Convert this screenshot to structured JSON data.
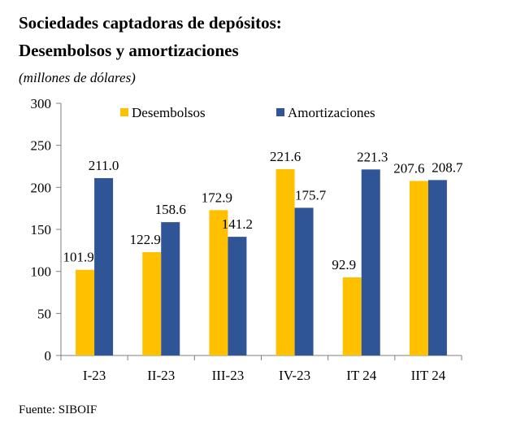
{
  "title_line1": "Sociedades captadoras de depósitos:",
  "title_line2": "Desembolsos y amortizaciones",
  "subtitle": "(millones de dólares)",
  "source": "Fuente:  SIBOIF",
  "colors": {
    "desembolsos": "#FFC000",
    "amortizaciones": "#2F5597"
  },
  "chart_data": {
    "type": "bar",
    "categories": [
      "I-23",
      "II-23",
      "III-23",
      "IV-23",
      "IT 24",
      "IIT 24"
    ],
    "series": [
      {
        "name": "Desembolsos",
        "values": [
          101.9,
          122.9,
          172.9,
          221.6,
          92.9,
          207.6
        ]
      },
      {
        "name": "Amortizaciones",
        "values": [
          211.0,
          158.6,
          141.2,
          175.7,
          221.3,
          208.7
        ]
      }
    ],
    "value_labels": [
      [
        "101.9",
        "122.9",
        "172.9",
        "221.6",
        "92.9",
        "207.6"
      ],
      [
        "211.0",
        "158.6",
        "141.2",
        "175.7",
        "221.3",
        "208.7"
      ]
    ],
    "ylim": [
      0,
      300
    ],
    "yticks": [
      0,
      50,
      100,
      150,
      200,
      250,
      300
    ],
    "legend_position": "top",
    "grid": false
  }
}
